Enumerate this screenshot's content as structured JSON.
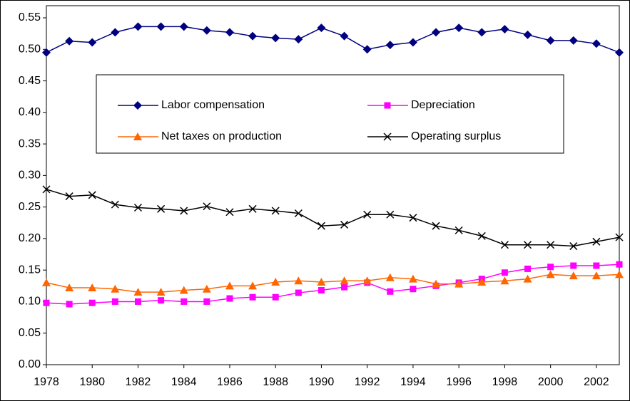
{
  "chart_data": {
    "type": "line",
    "x": [
      1978,
      1979,
      1980,
      1981,
      1982,
      1983,
      1984,
      1985,
      1986,
      1987,
      1988,
      1989,
      1990,
      1991,
      1992,
      1993,
      1994,
      1995,
      1996,
      1997,
      1998,
      1999,
      2000,
      2001,
      2002,
      2003
    ],
    "xlim": [
      1978,
      2003
    ],
    "xticks": [
      1978,
      1980,
      1982,
      1984,
      1986,
      1988,
      1990,
      1992,
      1994,
      1996,
      1998,
      2000,
      2002
    ],
    "ylim": [
      0,
      0.55
    ],
    "yticks": [
      {
        "value": 0,
        "label": "0.00"
      },
      0.05,
      {
        "value": 0.1,
        "label": "0.10"
      },
      0.15,
      {
        "value": 0.2,
        "label": "0.20"
      },
      0.25,
      {
        "value": 0.3,
        "label": "0.30"
      },
      0.35,
      {
        "value": 0.4,
        "label": "0.40"
      },
      0.45,
      {
        "value": 0.5,
        "label": "0.50"
      },
      0.55
    ],
    "legend": "upper center",
    "series": [
      {
        "name": "Labor compensation",
        "color": "#000080",
        "marker": "diamond",
        "values": [
          0.495,
          0.513,
          0.511,
          0.527,
          0.536,
          0.536,
          0.536,
          0.53,
          0.527,
          0.521,
          0.518,
          0.516,
          0.534,
          0.521,
          0.5,
          0.507,
          0.511,
          0.527,
          0.534,
          0.527,
          0.532,
          0.523,
          0.514,
          0.514,
          0.509,
          0.495
        ]
      },
      {
        "name": "Depreciation",
        "color": "#ff00ff",
        "marker": "square",
        "values": [
          0.098,
          0.096,
          0.098,
          0.1,
          0.1,
          0.102,
          0.1,
          0.1,
          0.105,
          0.107,
          0.107,
          0.114,
          0.118,
          0.123,
          0.13,
          0.116,
          0.12,
          0.125,
          0.13,
          0.136,
          0.146,
          0.152,
          0.155,
          0.157,
          0.157,
          0.159
        ]
      },
      {
        "name": "Net taxes on production",
        "color": "#ff6600",
        "marker": "triangle",
        "values": [
          0.13,
          0.122,
          0.122,
          0.12,
          0.115,
          0.115,
          0.118,
          0.12,
          0.125,
          0.125,
          0.131,
          0.133,
          0.131,
          0.133,
          0.133,
          0.138,
          0.136,
          0.128,
          0.128,
          0.131,
          0.133,
          0.136,
          0.143,
          0.141,
          0.141,
          0.143
        ]
      },
      {
        "name": "Operating surplus",
        "color": "#000000",
        "marker": "x",
        "values": [
          0.278,
          0.267,
          0.269,
          0.254,
          0.249,
          0.247,
          0.244,
          0.251,
          0.242,
          0.247,
          0.244,
          0.24,
          0.22,
          0.222,
          0.238,
          0.238,
          0.233,
          0.22,
          0.213,
          0.204,
          0.19,
          0.19,
          0.19,
          0.188,
          0.195,
          0.202
        ]
      }
    ]
  }
}
